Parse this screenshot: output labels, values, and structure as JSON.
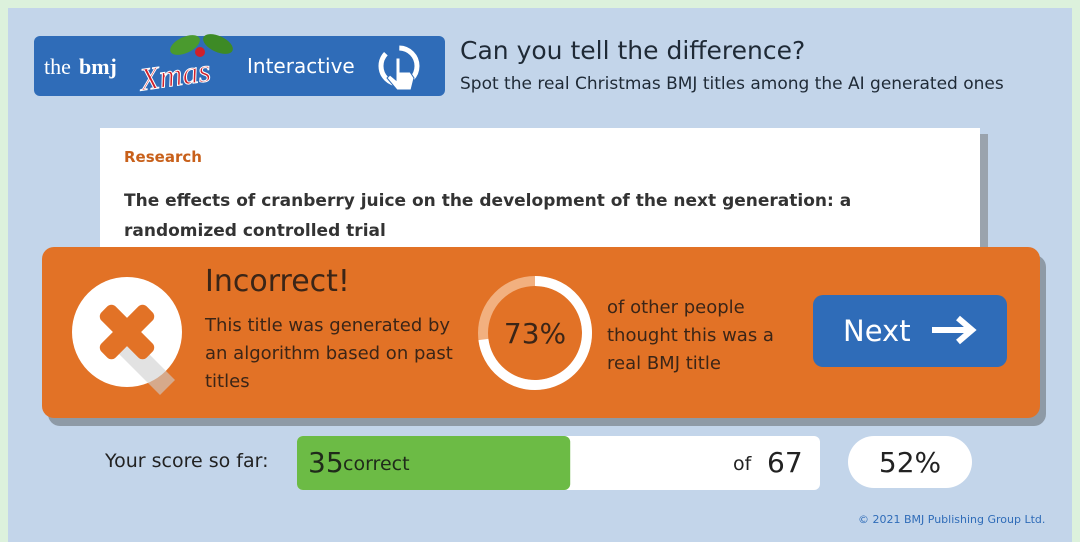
{
  "logo": {
    "brand_the": "the",
    "brand_bmj": "bmj",
    "xmas": "Xmas",
    "section": "Interactive"
  },
  "header": {
    "title": "Can you tell the difference?",
    "subtitle": "Spot the real Christmas BMJ titles among the AI generated ones"
  },
  "card": {
    "category": "Research",
    "title": "The effects of cranberry juice on the development of the next generation: a randomized controlled trial"
  },
  "result": {
    "heading": "Incorrect!",
    "explanation": "This title was generated by an algorithm based on past titles",
    "percent": {
      "value": 73,
      "label": "73%"
    },
    "percent_caption": "of other people thought this was a real BMJ title",
    "button": "Next"
  },
  "score": {
    "label": "Your score so far:",
    "correct": 35,
    "correct_word": "correct",
    "of_word": "of",
    "total": 67,
    "percent": {
      "value": 52,
      "label": "52%"
    }
  },
  "footer": {
    "copyright": "© 2021 BMJ Publishing Group Ltd."
  }
}
